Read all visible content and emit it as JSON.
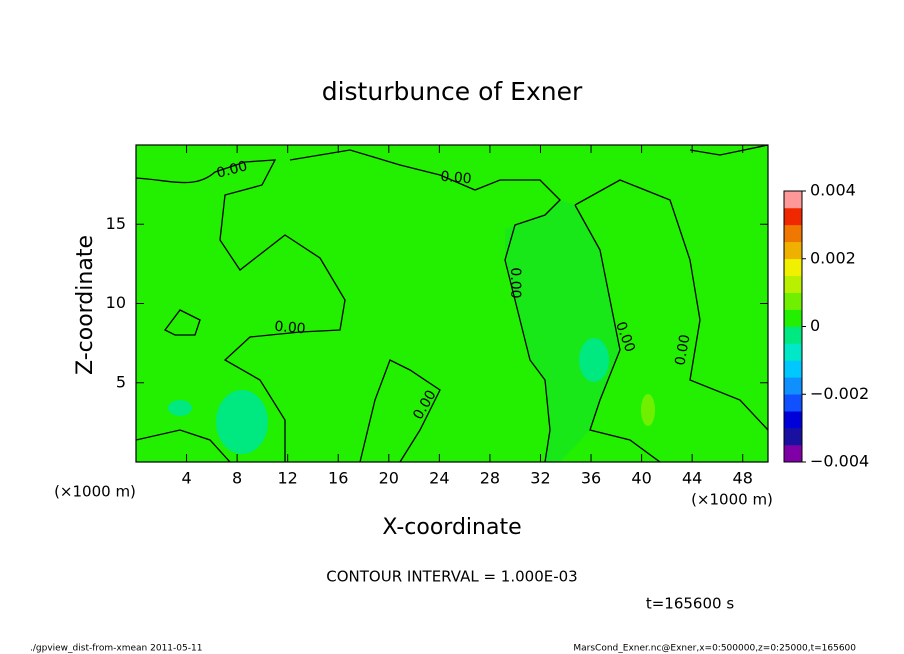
{
  "chart_data": {
    "type": "contour",
    "title": "disturbunce of Exner",
    "xlabel": "X-coordinate",
    "ylabel": "Z-coordinate",
    "xunit": "(×1000 m)",
    "xlim": [
      0,
      50
    ],
    "xticks": [
      4,
      8,
      12,
      16,
      20,
      24,
      28,
      32,
      36,
      40,
      44,
      48
    ],
    "ylim": [
      0,
      20
    ],
    "yticks": [
      5,
      10,
      15
    ],
    "clim": [
      -0.004,
      0.004
    ],
    "cticks": [
      0.004,
      0.002,
      0,
      {
        "value": -0.002,
        "label": "−0.002"
      },
      {
        "value": -0.004,
        "label": "−0.004"
      }
    ],
    "colors": [
      "#8000a8",
      "#1a10a0",
      "#0000d8",
      "#1050ff",
      "#1090ff",
      "#00c8ff",
      "#00e8c8",
      "#00e880",
      "#22f000",
      "#70f000",
      "#b8f000",
      "#f0f000",
      "#f0b000",
      "#f07800",
      "#f02800",
      "#ff9898"
    ],
    "contour_labels": [
      "0.00",
      "0.00",
      "0.00",
      "0.00",
      "0.00",
      "0.00",
      "0.00"
    ],
    "contour_interval": "CONTOUR INTERVAL = 1.000E-03",
    "time": "t=165600 s",
    "footer_left": "./gpview_dist-from-xmean  2011-05-11",
    "footer_right": "MarsCond_Exner.nc@Exner,x=0:500000,z=0:25000,t=165600"
  }
}
